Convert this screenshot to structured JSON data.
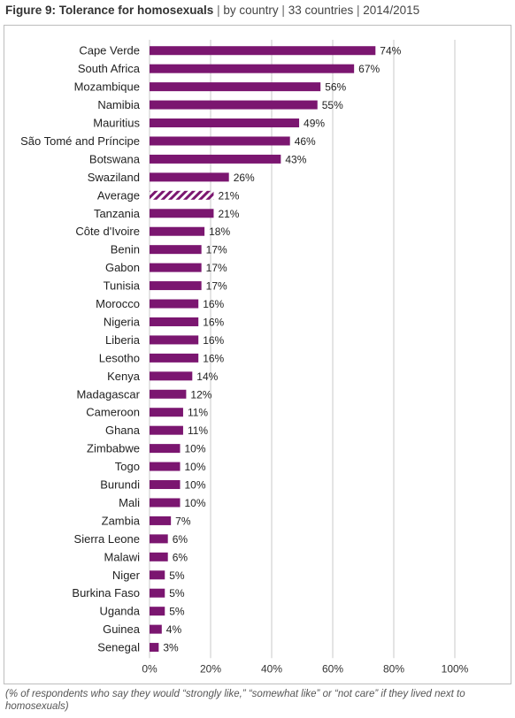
{
  "header": {
    "title_bold": "Figure 9: Tolerance for homosexuals",
    "separator": "|",
    "subtitle_by": "by country",
    "subtitle_count": "33 countries",
    "subtitle_years": "2014/2015"
  },
  "footnote": "(% of respondents who say they would “strongly like,” “somewhat like” or “not care” if they lived next to homosexuals)",
  "colors": {
    "bar": "#7b1670",
    "grid": "#c8c8c8",
    "text": "#222222"
  },
  "chart_data": {
    "type": "bar",
    "orientation": "horizontal",
    "categories": [
      "Cape Verde",
      "South Africa",
      "Mozambique",
      "Namibia",
      "Mauritius",
      "São Tomé and Príncipe",
      "Botswana",
      "Swaziland",
      "Average",
      "Tanzania",
      "Côte d'Ivoire",
      "Benin",
      "Gabon",
      "Tunisia",
      "Morocco",
      "Nigeria",
      "Liberia",
      "Lesotho",
      "Kenya",
      "Madagascar",
      "Cameroon",
      "Ghana",
      "Zimbabwe",
      "Togo",
      "Burundi",
      "Mali",
      "Zambia",
      "Sierra Leone",
      "Malawi",
      "Niger",
      "Burkina Faso",
      "Uganda",
      "Guinea",
      "Senegal"
    ],
    "values": [
      74,
      67,
      56,
      55,
      49,
      46,
      43,
      26,
      21,
      21,
      18,
      17,
      17,
      17,
      16,
      16,
      16,
      16,
      14,
      12,
      11,
      11,
      10,
      10,
      10,
      10,
      7,
      6,
      6,
      5,
      5,
      5,
      4,
      3
    ],
    "value_labels": [
      "74%",
      "67%",
      "56%",
      "55%",
      "49%",
      "46%",
      "43%",
      "26%",
      "21%",
      "21%",
      "18%",
      "17%",
      "17%",
      "17%",
      "16%",
      "16%",
      "16%",
      "16%",
      "14%",
      "12%",
      "11%",
      "11%",
      "10%",
      "10%",
      "10%",
      "10%",
      "7%",
      "6%",
      "6%",
      "5%",
      "5%",
      "5%",
      "4%",
      "3%"
    ],
    "highlighted": [
      "Average"
    ],
    "highlight_style": "hatched",
    "xlim": [
      0,
      100
    ],
    "x_ticks": [
      "0%",
      "20%",
      "40%",
      "60%",
      "80%",
      "100%"
    ],
    "x_tick_values": [
      0,
      20,
      40,
      60,
      80,
      100
    ],
    "grid": true,
    "xlabel": "",
    "ylabel": ""
  }
}
